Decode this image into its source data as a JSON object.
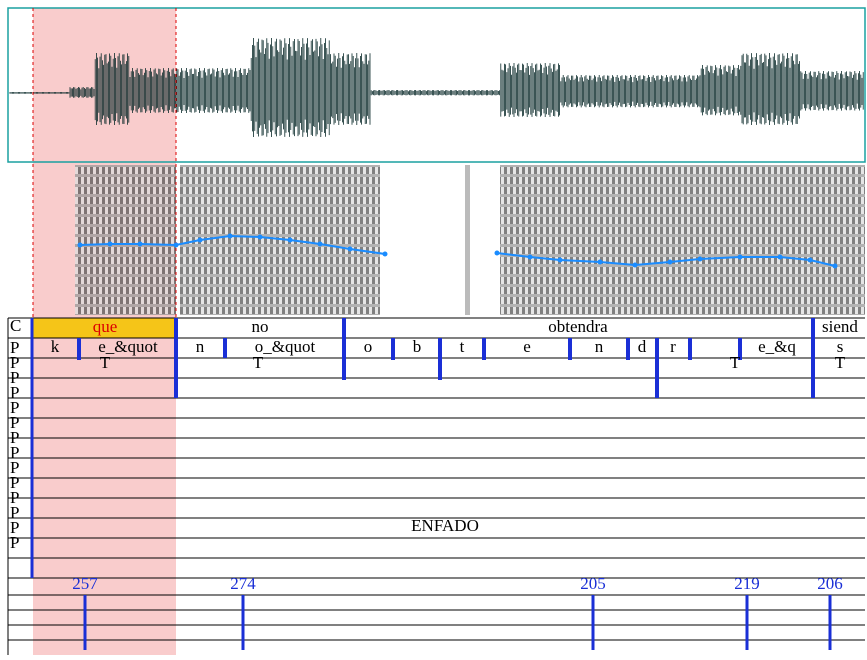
{
  "tiers": {
    "row_labels": [
      "C",
      "P",
      "P",
      "P",
      "P",
      "P",
      "P",
      "P",
      "P",
      "P",
      "P",
      "P",
      "P",
      "P",
      "P"
    ]
  },
  "word_tier": [
    "que",
    "no",
    "obtendra",
    "siend"
  ],
  "phone_tier": [
    "k",
    "e_&quot",
    "n",
    "o_&quot",
    "o",
    "b",
    "t",
    "e",
    "n",
    "d",
    "r",
    "e_&q",
    "s"
  ],
  "stress_marks": [
    "T",
    "T",
    "T",
    "T"
  ],
  "emotion_label": "ENFADO",
  "pitch_labels": [
    "257",
    "274",
    "205",
    "219",
    "206"
  ]
}
